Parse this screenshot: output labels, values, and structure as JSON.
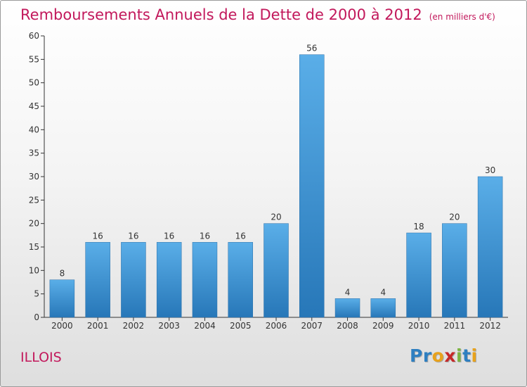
{
  "header": {
    "title": "Remboursements Annuels de la Dette de 2000 à 2012",
    "subtitle": "(en milliers d'€)"
  },
  "commune": "ILLOIS",
  "logo": {
    "letters": [
      "P",
      "r",
      "o",
      "x",
      "i",
      "t",
      "i"
    ],
    "colors": [
      "#2e7fc1",
      "#2e7fc1",
      "#e8a21c",
      "#c62828",
      "#7cb342",
      "#2e7fc1",
      "#e8a21c"
    ]
  },
  "chart_data": {
    "type": "bar",
    "categories": [
      "2000",
      "2001",
      "2002",
      "2003",
      "2004",
      "2005",
      "2006",
      "2007",
      "2008",
      "2009",
      "2010",
      "2011",
      "2012"
    ],
    "values": [
      8,
      16,
      16,
      16,
      16,
      16,
      20,
      56,
      4,
      4,
      18,
      20,
      30
    ],
    "title": "Remboursements Annuels de la Dette de 2000 à 2012",
    "ylim": [
      0,
      60
    ],
    "yticks": [
      0,
      5,
      10,
      15,
      20,
      25,
      30,
      35,
      40,
      45,
      50,
      55,
      60
    ],
    "grid": false,
    "bar_color": "#3d8fd6",
    "title_color": "#c2185b"
  }
}
